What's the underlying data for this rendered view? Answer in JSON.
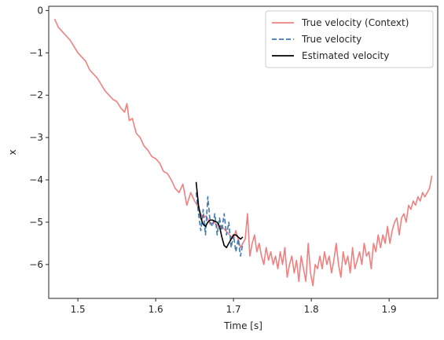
{
  "chart_data": {
    "type": "line",
    "xlabel": "Time [s]",
    "ylabel": "x",
    "xlim": [
      1.4625,
      1.9625
    ],
    "ylim": [
      -6.8,
      0.1
    ],
    "xticks": [
      1.5,
      1.6,
      1.7,
      1.8,
      1.9
    ],
    "xtick_labels": [
      "1.5",
      "1.6",
      "1.7",
      "1.8",
      "1.9"
    ],
    "yticks": [
      0,
      -1,
      -2,
      -3,
      -4,
      -5,
      -6
    ],
    "ytick_labels": [
      "0",
      "−1",
      "−2",
      "−3",
      "−4",
      "−5",
      "−6"
    ],
    "grid": false,
    "legend_position": "top-right",
    "series": [
      {
        "name": "True velocity (Context)",
        "color": "#f08080",
        "style": "solid",
        "x": [
          1.47,
          1.475,
          1.48,
          1.485,
          1.49,
          1.495,
          1.5,
          1.505,
          1.51,
          1.515,
          1.52,
          1.525,
          1.53,
          1.535,
          1.54,
          1.545,
          1.55,
          1.555,
          1.56,
          1.563,
          1.566,
          1.57,
          1.575,
          1.58,
          1.585,
          1.59,
          1.595,
          1.6,
          1.605,
          1.61,
          1.615,
          1.62,
          1.625,
          1.63,
          1.635,
          1.64,
          1.645,
          1.65,
          1.655,
          1.66,
          1.665,
          1.67,
          1.675,
          1.68,
          1.685,
          1.69,
          1.695,
          1.7,
          1.703,
          1.706,
          1.709,
          1.712,
          1.715,
          1.718,
          1.721,
          1.724,
          1.727,
          1.73,
          1.733,
          1.736,
          1.739,
          1.742,
          1.745,
          1.748,
          1.751,
          1.754,
          1.757,
          1.76,
          1.763,
          1.766,
          1.769,
          1.772,
          1.775,
          1.778,
          1.781,
          1.784,
          1.787,
          1.79,
          1.793,
          1.796,
          1.799,
          1.802,
          1.805,
          1.808,
          1.811,
          1.814,
          1.817,
          1.82,
          1.823,
          1.826,
          1.829,
          1.832,
          1.835,
          1.838,
          1.841,
          1.844,
          1.847,
          1.85,
          1.853,
          1.856,
          1.859,
          1.862,
          1.865,
          1.868,
          1.871,
          1.874,
          1.877,
          1.88,
          1.883,
          1.886,
          1.889,
          1.892,
          1.895,
          1.898,
          1.901,
          1.904,
          1.907,
          1.91,
          1.913,
          1.916,
          1.919,
          1.922,
          1.925,
          1.928,
          1.931,
          1.934,
          1.937,
          1.94,
          1.943,
          1.946,
          1.949,
          1.952,
          1.955
        ],
        "y": [
          -0.2,
          -0.4,
          -0.5,
          -0.6,
          -0.7,
          -0.85,
          -1.0,
          -1.1,
          -1.2,
          -1.4,
          -1.5,
          -1.6,
          -1.75,
          -1.9,
          -2.0,
          -2.1,
          -2.15,
          -2.3,
          -2.4,
          -2.2,
          -2.6,
          -2.55,
          -2.9,
          -3.0,
          -3.2,
          -3.3,
          -3.45,
          -3.5,
          -3.6,
          -3.8,
          -3.85,
          -4.0,
          -4.2,
          -4.3,
          -4.1,
          -4.6,
          -4.3,
          -4.5,
          -4.65,
          -4.9,
          -4.85,
          -5.05,
          -5.0,
          -5.1,
          -5.1,
          -5.2,
          -5.3,
          -5.4,
          -5.2,
          -5.4,
          -5.6,
          -5.5,
          -5.4,
          -4.8,
          -5.8,
          -5.5,
          -5.3,
          -5.7,
          -5.5,
          -5.8,
          -6.0,
          -5.6,
          -5.9,
          -5.7,
          -6.0,
          -5.8,
          -6.1,
          -5.7,
          -6.0,
          -5.6,
          -6.3,
          -6.0,
          -5.8,
          -6.2,
          -5.9,
          -6.4,
          -5.8,
          -6.1,
          -6.4,
          -5.5,
          -6.2,
          -6.5,
          -6.0,
          -6.1,
          -5.8,
          -6.1,
          -5.7,
          -6.0,
          -5.8,
          -6.2,
          -5.9,
          -5.5,
          -6.0,
          -6.3,
          -5.7,
          -6.0,
          -5.8,
          -6.2,
          -5.6,
          -6.1,
          -5.9,
          -5.7,
          -6.0,
          -5.5,
          -5.8,
          -5.7,
          -6.1,
          -5.5,
          -5.7,
          -5.3,
          -5.6,
          -5.3,
          -5.5,
          -5.1,
          -5.5,
          -5.2,
          -5.0,
          -4.9,
          -5.3,
          -4.9,
          -4.8,
          -5.0,
          -4.6,
          -4.7,
          -4.5,
          -4.6,
          -4.4,
          -4.5,
          -4.3,
          -4.4,
          -4.3,
          -4.2,
          -3.9
        ]
      },
      {
        "name": "True velocity",
        "color": "#3d7ab3",
        "style": "dashed",
        "x": [
          1.652,
          1.655,
          1.658,
          1.661,
          1.664,
          1.667,
          1.67,
          1.673,
          1.676,
          1.679,
          1.682,
          1.685,
          1.688,
          1.691,
          1.694,
          1.697,
          1.7,
          1.703,
          1.706,
          1.709,
          1.712
        ],
        "y": [
          -4.3,
          -4.8,
          -5.2,
          -4.7,
          -5.3,
          -4.4,
          -5.0,
          -5.1,
          -4.8,
          -5.3,
          -4.9,
          -5.2,
          -4.8,
          -5.3,
          -5.0,
          -5.6,
          -5.3,
          -5.7,
          -5.4,
          -5.8,
          -5.5
        ]
      },
      {
        "name": "Estimated velocity",
        "color": "#000000",
        "style": "solid",
        "x": [
          1.652,
          1.655,
          1.658,
          1.661,
          1.664,
          1.667,
          1.67,
          1.673,
          1.676,
          1.679,
          1.682,
          1.685,
          1.688,
          1.691,
          1.694,
          1.697,
          1.7,
          1.703,
          1.706,
          1.709,
          1.712
        ],
        "y": [
          -4.05,
          -4.6,
          -4.9,
          -5.05,
          -5.1,
          -5.0,
          -4.95,
          -4.95,
          -4.98,
          -5.0,
          -5.1,
          -5.35,
          -5.55,
          -5.6,
          -5.5,
          -5.4,
          -5.3,
          -5.3,
          -5.35,
          -5.4,
          -5.35
        ]
      }
    ]
  }
}
